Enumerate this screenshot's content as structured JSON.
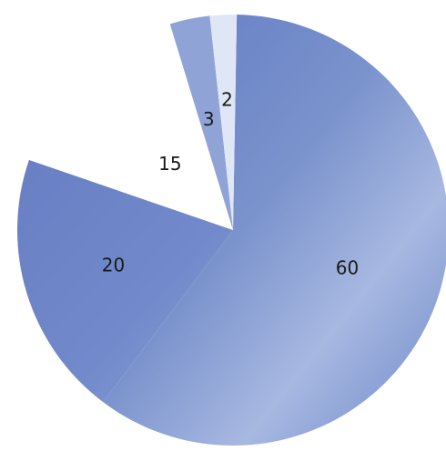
{
  "chart_data": {
    "type": "pie",
    "title": "",
    "categories": [
      "60",
      "20",
      "15",
      "3",
      "2"
    ],
    "values": [
      60,
      20,
      15,
      3,
      2
    ],
    "data_labels": [
      "60",
      "20",
      "15",
      "3",
      "2"
    ],
    "legend": "none",
    "slice_colors": [
      "#6d86c6",
      "#7088c8",
      "#ffffff",
      "#8fa3d6",
      "#dfe6f5"
    ]
  }
}
